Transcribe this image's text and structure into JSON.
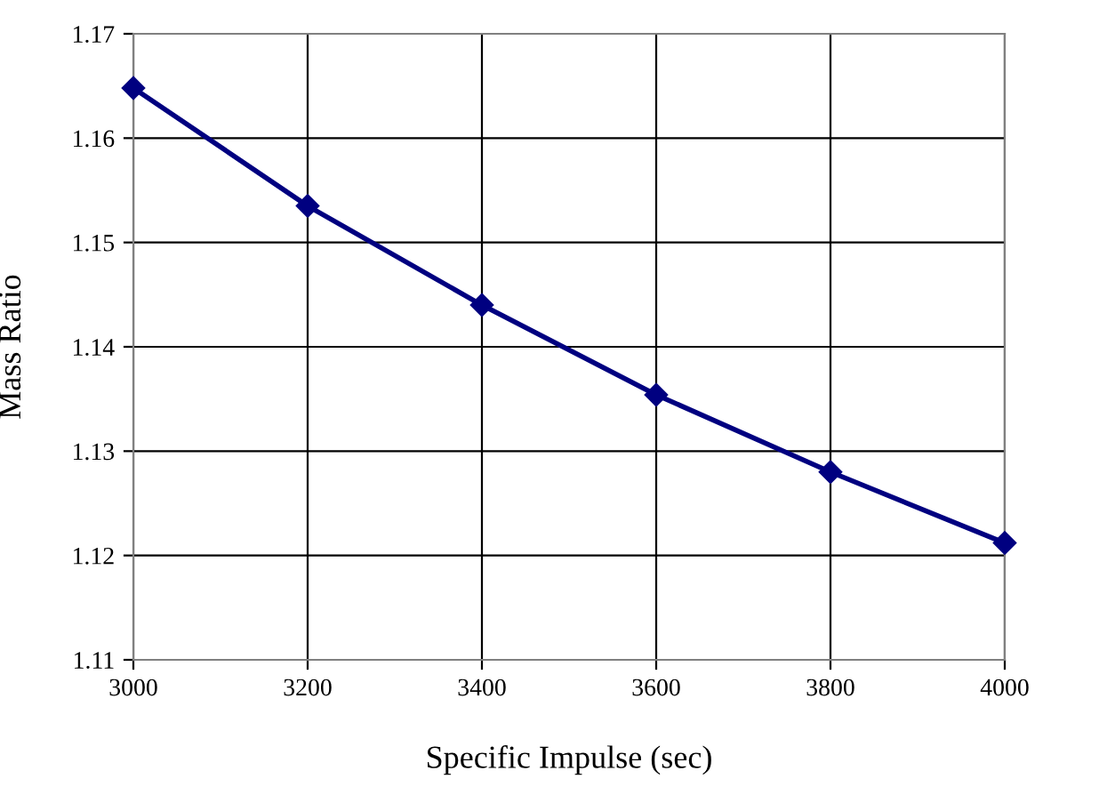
{
  "chart_data": {
    "type": "line",
    "xlabel": "Specific Impulse (sec)",
    "ylabel": "Mass Ratio",
    "x": [
      3000,
      3200,
      3400,
      3600,
      3800,
      4000
    ],
    "series": [
      {
        "color": "#000080",
        "values": [
          1.1648,
          1.1535,
          1.144,
          1.1354,
          1.128,
          1.1212
        ]
      }
    ],
    "xlim": [
      3000,
      4000
    ],
    "xticks": [
      3000,
      3200,
      3400,
      3600,
      3800,
      4000
    ],
    "ylim": [
      1.11,
      1.17
    ],
    "yticks": [
      {
        "value": 1.11,
        "label": "1.11"
      },
      {
        "value": 1.12,
        "label": "1.12"
      },
      {
        "value": 1.13,
        "label": "1.13"
      },
      {
        "value": 1.14,
        "label": "1.14"
      },
      {
        "value": 1.15,
        "label": "1.15"
      },
      {
        "value": 1.16,
        "label": "1.16"
      },
      {
        "value": 1.17,
        "label": "1.17"
      }
    ],
    "grid": true,
    "marker": "diamond",
    "line_style": "solid",
    "legend": false
  }
}
